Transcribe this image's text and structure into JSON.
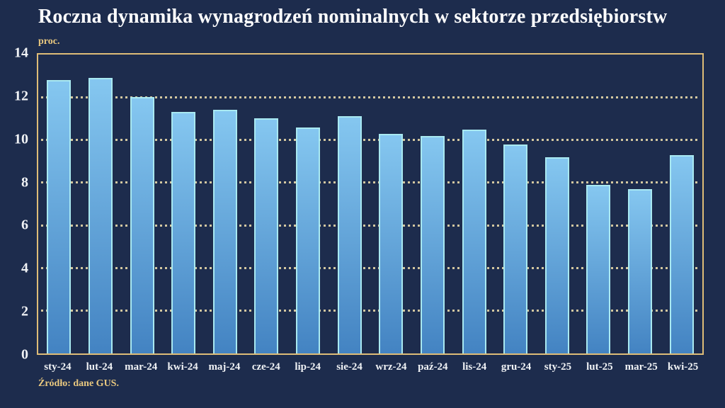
{
  "colors": {
    "background": "#1d2c4d",
    "frame": "#debc77",
    "grid_dots": "#d3c7a0",
    "bar_top": "#85c7f0",
    "bar_bottom": "#4383c2",
    "bar_edge": "#a9e9f1",
    "title_text": "#ffffff",
    "axis_text": "#f0f2f5",
    "accent_text": "#e9c87f"
  },
  "chart_data": {
    "type": "bar",
    "title": "Roczna dynamika wynagrodzeń nominalnych w sektorze przedsiębiorstw",
    "ylabel": "proc.",
    "xlabel": "",
    "categories": [
      "sty-24",
      "lut-24",
      "mar-24",
      "kwi-24",
      "maj-24",
      "cze-24",
      "lip-24",
      "sie-24",
      "wrz-24",
      "paź-24",
      "lis-24",
      "gru-24",
      "sty-25",
      "lut-25",
      "mar-25",
      "kwi-25"
    ],
    "values": [
      12.8,
      12.9,
      12.0,
      11.3,
      11.4,
      11.0,
      10.6,
      11.1,
      10.3,
      10.2,
      10.5,
      9.8,
      9.2,
      7.9,
      7.7,
      9.3
    ],
    "ylim": [
      0,
      14
    ],
    "yticks": [
      0,
      2,
      4,
      6,
      8,
      10,
      12,
      14
    ],
    "grid": "horizontal-dotted-at-even-values",
    "legend": "none",
    "source": "Źródło: dane GUS."
  }
}
